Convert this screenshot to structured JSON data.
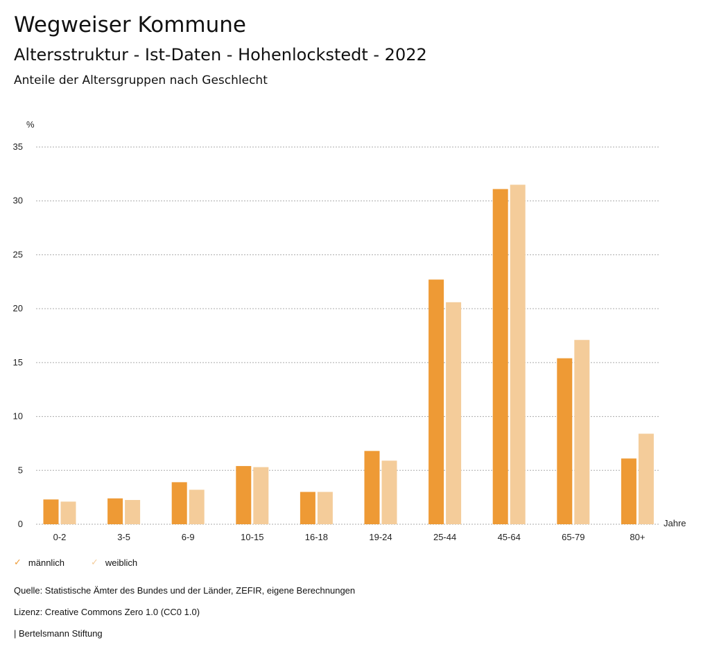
{
  "header": {
    "title": "Wegweiser Kommune",
    "subtitle": "Altersstruktur - Ist-Daten - Hohenlockstedt - 2022",
    "chart_title": "Anteile der Altersgruppen nach Geschlecht"
  },
  "chart_data": {
    "type": "bar",
    "title": "Anteile der Altersgruppen nach Geschlecht",
    "ylabel": "%",
    "xlabel": "Jahre",
    "ylim": [
      0,
      35
    ],
    "yticks": [
      "0",
      "5",
      "10",
      "15",
      "20",
      "25",
      "30",
      "35"
    ],
    "categories": [
      "0-2",
      "3-5",
      "6-9",
      "10-15",
      "16-18",
      "19-24",
      "25-44",
      "45-64",
      "65-79",
      "80+"
    ],
    "series": [
      {
        "name": "männlich",
        "color": "#ee9a35",
        "values": [
          2.3,
          2.4,
          3.9,
          5.4,
          3.0,
          6.8,
          22.7,
          31.1,
          15.4,
          6.1
        ]
      },
      {
        "name": "weiblich",
        "color": "#f4cc9a",
        "values": [
          2.1,
          2.25,
          3.2,
          5.3,
          3.0,
          5.9,
          20.6,
          31.5,
          17.1,
          8.4
        ]
      }
    ],
    "grid": true,
    "legend": "bottom-left"
  },
  "footer": {
    "source": "Quelle: Statistische Ämter des Bundes und der Länder, ZEFIR, eigene Berechnungen",
    "license": "Lizenz: Creative Commons Zero 1.0 (CC0 1.0)",
    "brand": "| Bertelsmann Stiftung"
  }
}
